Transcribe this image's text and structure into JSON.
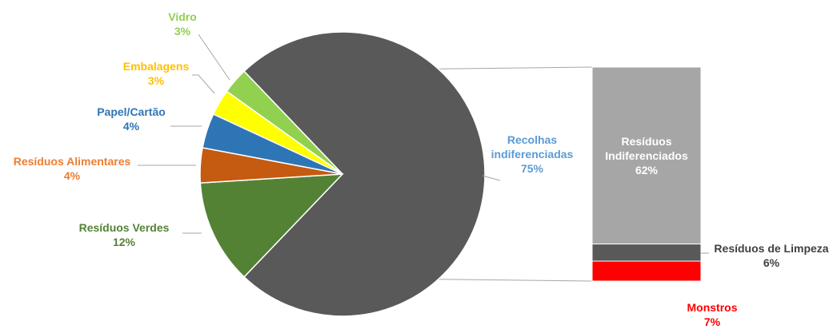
{
  "chart_data": {
    "type": "bar-of-pie",
    "pie": {
      "slices": [
        {
          "name": "Recolhas indiferenciadas",
          "lines": [
            "Recolhas",
            "indiferenciadas"
          ],
          "value": 75,
          "label": "75%",
          "color": "#595959",
          "label_color": "#5b9bd5"
        },
        {
          "name": "Resíduos Verdes",
          "lines": [
            "Resíduos Verdes"
          ],
          "value": 12,
          "label": "12%",
          "color": "#548235",
          "label_color": "#548235"
        },
        {
          "name": "Resíduos Alimentares",
          "lines": [
            "Resíduos Alimentares"
          ],
          "value": 4,
          "label": "4%",
          "color": "#c55a11",
          "label_color": "#ed7d31"
        },
        {
          "name": "Papel/Cartão",
          "lines": [
            "Papel/Cartão"
          ],
          "value": 4,
          "label": "4%",
          "color": "#2e75b6",
          "label_color": "#2e75b6"
        },
        {
          "name": "Embalagens",
          "lines": [
            "Embalagens"
          ],
          "value": 3,
          "label": "3%",
          "color": "#ffff00",
          "label_color": "#ffc000"
        },
        {
          "name": "Vidro",
          "lines": [
            "Vidro"
          ],
          "value": 3,
          "label": "3%",
          "color": "#92d050",
          "label_color": "#92d050"
        }
      ]
    },
    "bar": {
      "segments": [
        {
          "name": "Resíduos Indiferenciados",
          "lines": [
            "Resíduos",
            "Indiferenciados"
          ],
          "value": 62,
          "label": "62%",
          "color": "#a6a6a6",
          "label_color": "#ffffff"
        },
        {
          "name": "Resíduos de Limpeza",
          "lines": [
            "Resíduos de Limpeza"
          ],
          "value": 6,
          "label": "6%",
          "color": "#595959",
          "label_color": "#404040"
        },
        {
          "name": "Monstros",
          "lines": [
            "Monstros"
          ],
          "value": 7,
          "label": "7%",
          "color": "#ff0000",
          "label_color": "#ff0000"
        }
      ]
    }
  }
}
